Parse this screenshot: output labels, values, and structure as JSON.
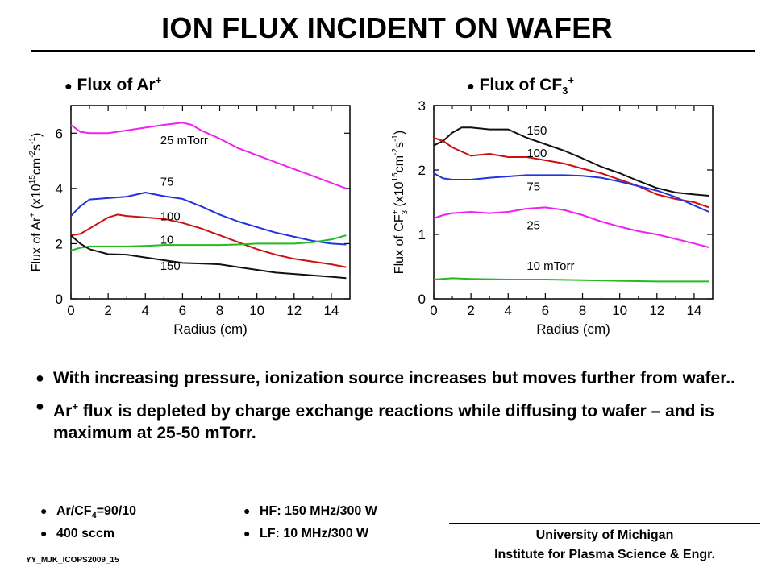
{
  "title": "ION FLUX INCIDENT ON WAFER",
  "panels": {
    "left": {
      "bullet": "●",
      "title_text": "Flux of Ar",
      "title_sup": "+"
    },
    "right": {
      "bullet": "●",
      "title_text": "Flux of CF",
      "title_sub": "3",
      "title_sup": "+"
    }
  },
  "chart_data": [
    {
      "type": "line",
      "xlabel": "Radius (cm)",
      "ylabel": {
        "pre": "Flux of Ar",
        "sup": "+",
        "mid": "  (x10",
        "exp1": "15",
        "unit": "cm",
        "exp2": "-2",
        "unit2": "s",
        "exp3": "-1",
        "post": ")"
      },
      "xlim": [
        0,
        15
      ],
      "ylim": [
        0,
        7
      ],
      "xticks": [
        0,
        2,
        4,
        6,
        8,
        10,
        12,
        14
      ],
      "yticks": [
        0,
        2,
        4,
        6
      ],
      "grid": false,
      "series": [
        {
          "name": "25 mTorr",
          "color": "#ee22ee",
          "label_xy": [
            4.8,
            5.6
          ],
          "x": [
            0,
            0.5,
            1,
            2,
            3,
            4,
            5,
            6,
            6.5,
            7,
            8,
            9,
            10,
            11,
            12,
            13,
            14,
            14.8
          ],
          "y": [
            6.3,
            6.05,
            6.0,
            6.0,
            6.1,
            6.2,
            6.3,
            6.38,
            6.3,
            6.1,
            5.8,
            5.45,
            5.2,
            4.95,
            4.7,
            4.45,
            4.2,
            4.0
          ]
        },
        {
          "name": "75",
          "color": "#2233dd",
          "label_xy": [
            4.8,
            4.1
          ],
          "x": [
            0,
            0.5,
            1,
            2,
            3,
            4,
            5,
            6,
            7,
            8,
            9,
            10,
            11,
            12,
            13,
            14,
            14.8
          ],
          "y": [
            3.0,
            3.35,
            3.6,
            3.65,
            3.7,
            3.85,
            3.72,
            3.62,
            3.35,
            3.05,
            2.8,
            2.6,
            2.4,
            2.25,
            2.1,
            2.0,
            1.97
          ]
        },
        {
          "name": "100",
          "color": "#cc1111",
          "label_xy": [
            4.8,
            2.85
          ],
          "x": [
            0,
            0.5,
            1,
            2,
            2.5,
            3,
            4,
            5,
            6,
            7,
            8,
            9,
            10,
            11,
            12,
            13,
            14,
            14.8
          ],
          "y": [
            2.3,
            2.35,
            2.55,
            2.95,
            3.05,
            3.0,
            2.95,
            2.9,
            2.75,
            2.55,
            2.3,
            2.05,
            1.8,
            1.6,
            1.45,
            1.35,
            1.25,
            1.15
          ]
        },
        {
          "name": "10",
          "color": "#22bb22",
          "label_xy": [
            4.8,
            2.0
          ],
          "x": [
            0,
            0.5,
            1,
            2,
            3,
            4,
            5,
            6,
            7,
            8,
            9,
            10,
            11,
            12,
            13,
            14,
            14.8
          ],
          "y": [
            1.75,
            1.85,
            1.9,
            1.9,
            1.9,
            1.92,
            1.95,
            1.95,
            1.95,
            1.95,
            1.97,
            2.0,
            2.0,
            2.0,
            2.05,
            2.15,
            2.3
          ]
        },
        {
          "name": "150",
          "color": "#111111",
          "label_xy": [
            4.8,
            1.05
          ],
          "x": [
            0,
            0.5,
            1,
            2,
            3,
            4,
            5,
            6,
            7,
            8,
            9,
            10,
            11,
            12,
            13,
            14,
            14.8
          ],
          "y": [
            2.3,
            2.0,
            1.8,
            1.62,
            1.6,
            1.5,
            1.4,
            1.3,
            1.28,
            1.25,
            1.15,
            1.05,
            0.95,
            0.9,
            0.85,
            0.8,
            0.75
          ]
        }
      ]
    },
    {
      "type": "line",
      "xlabel": "Radius (cm)",
      "ylabel": {
        "pre": "Flux of CF",
        "sup": "+",
        "sub": "3",
        "mid": "  (x10",
        "exp1": "15",
        "unit": "cm",
        "exp2": "-2",
        "unit2": "s",
        "exp3": "-1",
        "post": ")"
      },
      "xlim": [
        0,
        15
      ],
      "ylim": [
        0,
        3
      ],
      "xticks": [
        0,
        2,
        4,
        6,
        8,
        10,
        12,
        14
      ],
      "yticks": [
        0,
        1,
        2,
        3
      ],
      "grid": false,
      "series": [
        {
          "name": "150",
          "color": "#111111",
          "label_xy": [
            5.0,
            2.55
          ],
          "x": [
            0,
            0.5,
            1,
            1.5,
            2,
            3,
            4,
            5,
            6,
            7,
            8,
            9,
            10,
            11,
            12,
            13,
            14,
            14.8
          ],
          "y": [
            2.38,
            2.45,
            2.58,
            2.66,
            2.66,
            2.63,
            2.63,
            2.5,
            2.4,
            2.3,
            2.18,
            2.05,
            1.95,
            1.83,
            1.72,
            1.65,
            1.62,
            1.6
          ]
        },
        {
          "name": "100",
          "color": "#cc1111",
          "label_xy": [
            5.0,
            2.2
          ],
          "x": [
            0,
            0.5,
            1,
            2,
            3,
            4,
            5,
            6,
            7,
            8,
            9,
            10,
            11,
            12,
            13,
            14,
            14.8
          ],
          "y": [
            2.5,
            2.45,
            2.35,
            2.22,
            2.25,
            2.2,
            2.2,
            2.15,
            2.1,
            2.02,
            1.95,
            1.85,
            1.75,
            1.62,
            1.55,
            1.5,
            1.42
          ]
        },
        {
          "name": "75",
          "color": "#2233dd",
          "label_xy": [
            5.0,
            1.68
          ],
          "x": [
            0,
            0.5,
            1,
            2,
            3,
            4,
            5,
            6,
            7,
            8,
            9,
            10,
            11,
            12,
            13,
            14,
            14.8
          ],
          "y": [
            1.95,
            1.87,
            1.85,
            1.85,
            1.88,
            1.9,
            1.92,
            1.92,
            1.92,
            1.91,
            1.88,
            1.82,
            1.75,
            1.68,
            1.58,
            1.45,
            1.35
          ]
        },
        {
          "name": "25",
          "color": "#ee22ee",
          "label_xy": [
            5.0,
            1.08
          ],
          "x": [
            0,
            0.5,
            1,
            2,
            3,
            4,
            5,
            6,
            7,
            8,
            9,
            10,
            11,
            12,
            13,
            14,
            14.8
          ],
          "y": [
            1.25,
            1.3,
            1.33,
            1.35,
            1.33,
            1.35,
            1.4,
            1.42,
            1.38,
            1.3,
            1.2,
            1.12,
            1.05,
            1.0,
            0.93,
            0.86,
            0.8
          ]
        },
        {
          "name": "10 mTorr",
          "color": "#22bb22",
          "label_xy": [
            5.0,
            0.45
          ],
          "x": [
            0,
            1,
            2,
            4,
            6,
            8,
            10,
            12,
            14,
            14.8
          ],
          "y": [
            0.3,
            0.32,
            0.31,
            0.3,
            0.3,
            0.29,
            0.28,
            0.27,
            0.27,
            0.27
          ]
        }
      ]
    }
  ],
  "bullets": [
    {
      "text": "With increasing pressure, ionization source increases but moves further from wafer.."
    },
    {
      "pre": "Ar",
      "sup": "+",
      "text": " flux is depleted by charge exchange reactions while diffusing to wafer – and is maximum at 25-50 mTorr."
    }
  ],
  "conditions": {
    "bullet": "●",
    "gas_pre": "Ar/CF",
    "gas_sub": "4",
    "gas_post": "=90/10",
    "flow": "400 sccm",
    "hf": "HF: 150 MHz/300 W",
    "lf": "LF: 10 MHz/300 W"
  },
  "affiliation": {
    "line1": "University of Michigan",
    "line2": "Institute for Plasma Science & Engr."
  },
  "footer_id": "YY_MJK_ICOPS2009_15"
}
